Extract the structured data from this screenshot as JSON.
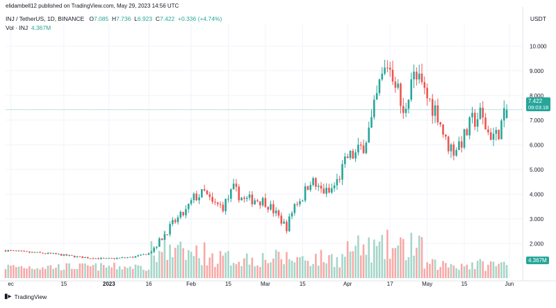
{
  "published": "elidambell12 published on TradingView.com, May 29, 2023 14:56 UTC",
  "symbol_line": "INJ / TetherUS, 1D, BINANCE",
  "ohlc": {
    "o_label": "O",
    "o": "7.085",
    "h_label": "H",
    "h": "7.736",
    "l_label": "L",
    "l": "6.923",
    "c_label": "C",
    "c": "7.422",
    "change": "+0.336 (+4.74%)"
  },
  "vol_label": "Vol · INJ",
  "vol_value": "4.367M",
  "currency": "USDT",
  "price_badge": {
    "price": "7.422",
    "countdown": "09:03:18"
  },
  "footer": "TradingView",
  "colors": {
    "up": "#26a69a",
    "down": "#ef5350",
    "up_vol": "#a5d6c9",
    "down_vol": "#f7a9a7",
    "grid": "#f0f3fa",
    "axis_text": "#131722"
  },
  "chart_data": {
    "type": "candlestick",
    "title": "INJ / TetherUS, 1D, BINANCE",
    "ylim": [
      0.6,
      10.6
    ],
    "y_ticks": [
      2.0,
      3.0,
      4.0,
      5.0,
      6.0,
      7.0,
      8.0,
      9.0,
      10.0
    ],
    "y_tick_labels": [
      "2.000",
      "3.000",
      "4.000",
      "5.000",
      "6.000",
      "7.000",
      "8.000",
      "9.000",
      "10.000"
    ],
    "x_ticks": [
      {
        "label": "ec",
        "day": -6
      },
      {
        "label": "15",
        "day": 14
      },
      {
        "label": "2023",
        "day": 31
      },
      {
        "label": "16",
        "day": 46
      },
      {
        "label": "Feb",
        "day": 62
      },
      {
        "label": "15",
        "day": 76
      },
      {
        "label": "Mar",
        "day": 90
      },
      {
        "label": "15",
        "day": 104
      },
      {
        "label": "Apr",
        "day": 121
      },
      {
        "label": "17",
        "day": 137
      },
      {
        "label": "May",
        "day": 151
      },
      {
        "label": "15",
        "day": 165
      },
      {
        "label": "Jun",
        "day": 182
      }
    ],
    "x_range_days": [
      -8,
      187
    ],
    "keyframes": [
      [
        -8,
        1.72
      ],
      [
        0,
        1.65
      ],
      [
        10,
        1.58
      ],
      [
        20,
        1.45
      ],
      [
        30,
        1.38
      ],
      [
        40,
        1.45
      ],
      [
        46,
        1.6
      ],
      [
        50,
        2.1
      ],
      [
        55,
        2.8
      ],
      [
        60,
        3.3
      ],
      [
        63,
        3.85
      ],
      [
        67,
        4.05
      ],
      [
        70,
        3.6
      ],
      [
        74,
        3.5
      ],
      [
        78,
        4.2
      ],
      [
        82,
        3.75
      ],
      [
        86,
        3.8
      ],
      [
        90,
        3.7
      ],
      [
        94,
        3.2
      ],
      [
        98,
        2.65
      ],
      [
        101,
        3.6
      ],
      [
        104,
        3.9
      ],
      [
        107,
        4.6
      ],
      [
        110,
        4.2
      ],
      [
        114,
        4.05
      ],
      [
        117,
        4.5
      ],
      [
        121,
        5.5
      ],
      [
        124,
        5.6
      ],
      [
        127,
        6.0
      ],
      [
        130,
        6.9
      ],
      [
        133,
        8.4
      ],
      [
        136,
        9.3
      ],
      [
        139,
        8.7
      ],
      [
        142,
        7.1
      ],
      [
        145,
        8.8
      ],
      [
        148,
        8.5
      ],
      [
        151,
        7.9
      ],
      [
        155,
        7.3
      ],
      [
        158,
        6.1
      ],
      [
        161,
        5.8
      ],
      [
        165,
        6.3
      ],
      [
        168,
        6.95
      ],
      [
        171,
        7.2
      ],
      [
        174,
        6.5
      ],
      [
        177,
        6.35
      ],
      [
        180,
        7.085
      ],
      [
        181,
        7.422
      ]
    ],
    "vol_ylim": [
      0,
      2.7
    ],
    "last_close": 7.422
  }
}
